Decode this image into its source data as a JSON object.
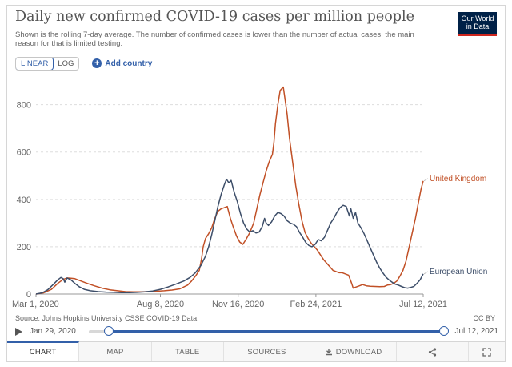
{
  "header": {
    "title": "Daily new confirmed COVID-19 cases per million people",
    "subtitle": "Shown is the rolling 7-day average. The number of confirmed cases is lower than the number of actual cases; the main reason for that is limited testing.",
    "logo_line1": "Our World",
    "logo_line2": "in Data"
  },
  "controls": {
    "linear_label": "LINEAR",
    "log_label": "LOG",
    "add_country_label": "Add country"
  },
  "footer": {
    "source": "Source: Johns Hopkins University CSSE COVID-19 Data",
    "license": "CC BY"
  },
  "timeline": {
    "start_label": "Jan 29, 2020",
    "end_label": "Jul 12, 2021",
    "window_start_fraction": 0.056,
    "window_end_fraction": 1.0
  },
  "tabs": [
    "CHART",
    "MAP",
    "TABLE",
    "SOURCES",
    "DOWNLOAD"
  ],
  "colors": {
    "uk": "#c15026",
    "eu": "#3d4e69",
    "accent": "#3360a9",
    "grid": "#dddddd"
  },
  "chart_data": {
    "type": "line",
    "title": "Daily new confirmed COVID-19 cases per million people",
    "xlabel": "",
    "ylabel": "",
    "x_unit": "days since Mar 1, 2020",
    "xlim": [
      0,
      498
    ],
    "ylim": [
      0,
      880
    ],
    "yticks": [
      0,
      200,
      400,
      600,
      800
    ],
    "xticks": [
      {
        "x": 0,
        "label": "Mar 1, 2020"
      },
      {
        "x": 160,
        "label": "Aug 8, 2020"
      },
      {
        "x": 260,
        "label": "Nov 16, 2020"
      },
      {
        "x": 360,
        "label": "Feb 24, 2021"
      },
      {
        "x": 498,
        "label": "Jul 12, 2021"
      }
    ],
    "grid": true,
    "series": [
      {
        "name": "United Kingdom",
        "label_value": 478,
        "points": [
          [
            0,
            0
          ],
          [
            10,
            5
          ],
          [
            20,
            20
          ],
          [
            28,
            45
          ],
          [
            35,
            62
          ],
          [
            40,
            68
          ],
          [
            45,
            67
          ],
          [
            50,
            65
          ],
          [
            58,
            55
          ],
          [
            66,
            45
          ],
          [
            75,
            35
          ],
          [
            85,
            25
          ],
          [
            95,
            18
          ],
          [
            105,
            14
          ],
          [
            115,
            10
          ],
          [
            125,
            9
          ],
          [
            135,
            9
          ],
          [
            145,
            10
          ],
          [
            155,
            12
          ],
          [
            165,
            14
          ],
          [
            175,
            17
          ],
          [
            185,
            22
          ],
          [
            195,
            38
          ],
          [
            200,
            55
          ],
          [
            205,
            75
          ],
          [
            210,
            100
          ],
          [
            213,
            150
          ],
          [
            215,
            200
          ],
          [
            218,
            235
          ],
          [
            222,
            255
          ],
          [
            226,
            280
          ],
          [
            230,
            320
          ],
          [
            234,
            350
          ],
          [
            238,
            360
          ],
          [
            242,
            365
          ],
          [
            246,
            370
          ],
          [
            250,
            320
          ],
          [
            254,
            280
          ],
          [
            258,
            245
          ],
          [
            262,
            220
          ],
          [
            266,
            210
          ],
          [
            270,
            230
          ],
          [
            275,
            260
          ],
          [
            280,
            300
          ],
          [
            284,
            360
          ],
          [
            288,
            420
          ],
          [
            292,
            470
          ],
          [
            296,
            520
          ],
          [
            300,
            560
          ],
          [
            304,
            590
          ],
          [
            306,
            640
          ],
          [
            308,
            720
          ],
          [
            311,
            800
          ],
          [
            314,
            860
          ],
          [
            318,
            875
          ],
          [
            320,
            830
          ],
          [
            323,
            760
          ],
          [
            326,
            660
          ],
          [
            330,
            560
          ],
          [
            334,
            460
          ],
          [
            338,
            380
          ],
          [
            342,
            310
          ],
          [
            346,
            260
          ],
          [
            350,
            235
          ],
          [
            354,
            215
          ],
          [
            358,
            200
          ],
          [
            362,
            185
          ],
          [
            366,
            165
          ],
          [
            370,
            145
          ],
          [
            374,
            130
          ],
          [
            378,
            115
          ],
          [
            382,
            100
          ],
          [
            386,
            95
          ],
          [
            390,
            90
          ],
          [
            394,
            90
          ],
          [
            398,
            85
          ],
          [
            402,
            80
          ],
          [
            406,
            45
          ],
          [
            408,
            25
          ],
          [
            412,
            30
          ],
          [
            416,
            35
          ],
          [
            420,
            40
          ],
          [
            425,
            35
          ],
          [
            430,
            33
          ],
          [
            436,
            32
          ],
          [
            442,
            31
          ],
          [
            448,
            32
          ],
          [
            452,
            38
          ],
          [
            456,
            40
          ],
          [
            460,
            45
          ],
          [
            464,
            55
          ],
          [
            468,
            75
          ],
          [
            472,
            100
          ],
          [
            476,
            140
          ],
          [
            480,
            200
          ],
          [
            484,
            260
          ],
          [
            488,
            320
          ],
          [
            492,
            390
          ],
          [
            495,
            440
          ],
          [
            498,
            478
          ]
        ]
      },
      {
        "name": "European Union",
        "label_value": 85,
        "points": [
          [
            0,
            0
          ],
          [
            8,
            5
          ],
          [
            15,
            18
          ],
          [
            22,
            40
          ],
          [
            28,
            60
          ],
          [
            32,
            70
          ],
          [
            35,
            65
          ],
          [
            37,
            50
          ],
          [
            40,
            68
          ],
          [
            45,
            60
          ],
          [
            50,
            45
          ],
          [
            56,
            30
          ],
          [
            62,
            20
          ],
          [
            70,
            14
          ],
          [
            80,
            10
          ],
          [
            90,
            8
          ],
          [
            100,
            7
          ],
          [
            110,
            6
          ],
          [
            120,
            6
          ],
          [
            130,
            7
          ],
          [
            140,
            9
          ],
          [
            150,
            13
          ],
          [
            160,
            20
          ],
          [
            170,
            30
          ],
          [
            180,
            42
          ],
          [
            190,
            55
          ],
          [
            198,
            70
          ],
          [
            205,
            90
          ],
          [
            212,
            120
          ],
          [
            218,
            160
          ],
          [
            222,
            200
          ],
          [
            226,
            250
          ],
          [
            230,
            310
          ],
          [
            234,
            370
          ],
          [
            238,
            420
          ],
          [
            242,
            460
          ],
          [
            245,
            485
          ],
          [
            248,
            470
          ],
          [
            251,
            480
          ],
          [
            255,
            430
          ],
          [
            259,
            390
          ],
          [
            263,
            340
          ],
          [
            267,
            300
          ],
          [
            271,
            275
          ],
          [
            275,
            262
          ],
          [
            279,
            268
          ],
          [
            283,
            258
          ],
          [
            287,
            262
          ],
          [
            291,
            285
          ],
          [
            294,
            320
          ],
          [
            296,
            300
          ],
          [
            299,
            290
          ],
          [
            303,
            305
          ],
          [
            307,
            330
          ],
          [
            311,
            345
          ],
          [
            315,
            340
          ],
          [
            319,
            330
          ],
          [
            323,
            310
          ],
          [
            327,
            300
          ],
          [
            331,
            295
          ],
          [
            335,
            285
          ],
          [
            339,
            260
          ],
          [
            343,
            240
          ],
          [
            347,
            218
          ],
          [
            351,
            205
          ],
          [
            355,
            200
          ],
          [
            359,
            210
          ],
          [
            363,
            230
          ],
          [
            367,
            225
          ],
          [
            371,
            240
          ],
          [
            375,
            270
          ],
          [
            379,
            300
          ],
          [
            383,
            320
          ],
          [
            387,
            345
          ],
          [
            391,
            365
          ],
          [
            395,
            375
          ],
          [
            399,
            370
          ],
          [
            403,
            330
          ],
          [
            405,
            360
          ],
          [
            408,
            320
          ],
          [
            411,
            345
          ],
          [
            414,
            300
          ],
          [
            418,
            280
          ],
          [
            422,
            255
          ],
          [
            426,
            225
          ],
          [
            430,
            195
          ],
          [
            434,
            165
          ],
          [
            438,
            135
          ],
          [
            442,
            110
          ],
          [
            446,
            90
          ],
          [
            450,
            72
          ],
          [
            454,
            60
          ],
          [
            458,
            50
          ],
          [
            462,
            42
          ],
          [
            466,
            38
          ],
          [
            470,
            32
          ],
          [
            474,
            27
          ],
          [
            478,
            25
          ],
          [
            482,
            28
          ],
          [
            486,
            32
          ],
          [
            490,
            45
          ],
          [
            494,
            60
          ],
          [
            498,
            85
          ]
        ]
      }
    ]
  }
}
